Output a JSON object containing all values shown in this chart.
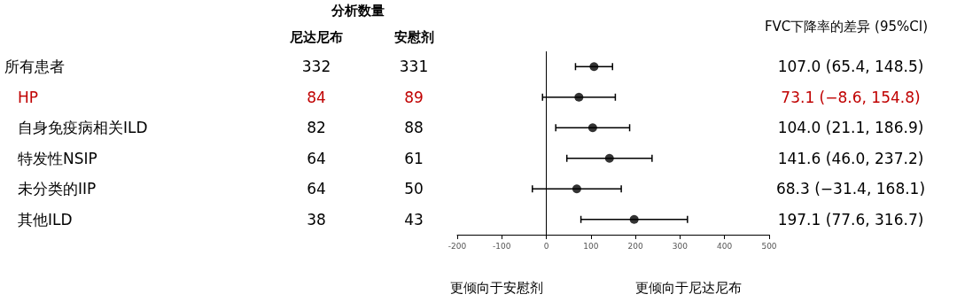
{
  "chart_data": [
    {
      "type": "other",
      "title": "分析数量",
      "data_labels": true,
      "categories": [
        "所有患者",
        "HP",
        "自身免疫病相关ILD",
        "特发性NSIP",
        "未分类的IIP",
        "其他ILD"
      ],
      "colors": [
        "#000000",
        "#c00000",
        "#000000",
        "#000000",
        "#000000",
        "#000000"
      ],
      "series": [
        {
          "name": "尼达尼布",
          "values": [
            332,
            84,
            82,
            64,
            64,
            38
          ]
        },
        {
          "name": "安慰剂",
          "values": [
            331,
            89,
            88,
            61,
            50,
            43
          ]
        }
      ]
    },
    {
      "type": "scatter",
      "orientation": "horizontal",
      "title": "FVC下降率的差异 (95%CI)",
      "categories": [
        null,
        null,
        null,
        null,
        null,
        null
      ],
      "color": "#000000",
      "marker": "circle",
      "values": [
        107.0,
        73.1,
        104.0,
        141.6,
        68.3,
        197.1
      ],
      "errors": [
        [
          65.4,
          148.5
        ],
        [
          -8.6,
          154.8
        ],
        [
          21.1,
          186.9
        ],
        [
          46.0,
          237.2
        ],
        [
          -31.4,
          168.1
        ],
        [
          77.6,
          316.7
        ]
      ],
      "value_labels": [
        "107.0 (65.4, 148.5)",
        "73.1 (−8.6, 154.8)",
        "104.0 (21.1, 186.9)",
        "141.6 (46.0, 237.2)",
        "68.3 (−31.4, 168.1)",
        "197.1 (77.6, 316.7)"
      ],
      "ref_lines": [
        {
          "axis": "x",
          "value": 0,
          "color": "#000000"
        }
      ],
      "xlim": [
        -200,
        500
      ],
      "xticks": [
        -200,
        -100,
        0,
        100,
        200,
        300,
        400,
        500
      ],
      "grid": false,
      "tick_labels": "x",
      "annotations": [
        "更倾向于安慰剂",
        "更倾向于尼达尼布"
      ]
    }
  ]
}
